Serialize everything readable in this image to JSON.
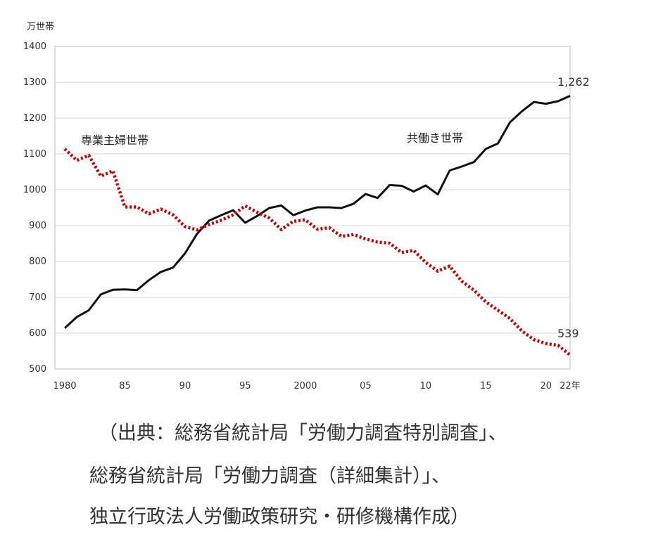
{
  "chart_data": {
    "type": "line",
    "unit_label": "万世帯",
    "ylim": [
      500,
      1400
    ],
    "yticks": [
      500,
      600,
      700,
      800,
      900,
      1000,
      1100,
      1200,
      1300,
      1400
    ],
    "xlim": [
      1980,
      2022
    ],
    "xticks": [
      {
        "value": 1980,
        "label": "1980"
      },
      {
        "value": 1985,
        "label": "85"
      },
      {
        "value": 1990,
        "label": "90"
      },
      {
        "value": 1995,
        "label": "95"
      },
      {
        "value": 2000,
        "label": "2000"
      },
      {
        "value": 2005,
        "label": "05"
      },
      {
        "value": 2010,
        "label": "10"
      },
      {
        "value": 2015,
        "label": "15"
      },
      {
        "value": 2020,
        "label": "20"
      },
      {
        "value": 2022,
        "label": "22年"
      }
    ],
    "grid": true,
    "x": [
      1980,
      1981,
      1982,
      1983,
      1984,
      1985,
      1986,
      1987,
      1988,
      1989,
      1990,
      1991,
      1992,
      1993,
      1994,
      1995,
      1996,
      1997,
      1998,
      1999,
      2000,
      2001,
      2002,
      2003,
      2004,
      2005,
      2006,
      2007,
      2008,
      2009,
      2010,
      2011,
      2012,
      2013,
      2014,
      2015,
      2016,
      2017,
      2018,
      2019,
      2020,
      2021,
      2022
    ],
    "series": [
      {
        "name": "共働き世帯",
        "color": "#111111",
        "style": "solid",
        "values": [
          614,
          645,
          664,
          708,
          721,
          722,
          720,
          748,
          771,
          783,
          823,
          877,
          914,
          929,
          943,
          908,
          927,
          949,
          956,
          929,
          942,
          951,
          951,
          949,
          961,
          988,
          977,
          1013,
          1011,
          995,
          1012,
          987,
          1054,
          1065,
          1077,
          1114,
          1129,
          1188,
          1219,
          1245,
          1240,
          1247,
          1262
        ],
        "end_label": "1,262"
      },
      {
        "name": "専業主婦世帯",
        "color": "#c00000",
        "style": "dotted",
        "values": [
          1114,
          1082,
          1096,
          1038,
          1053,
          952,
          952,
          933,
          946,
          930,
          897,
          888,
          903,
          915,
          930,
          955,
          937,
          921,
          889,
          912,
          916,
          890,
          894,
          870,
          875,
          863,
          854,
          851,
          825,
          831,
          797,
          773,
          787,
          745,
          720,
          687,
          664,
          641,
          606,
          582,
          571,
          566,
          539
        ],
        "end_label": "539"
      }
    ]
  },
  "source_lines": [
    "（出典：総務省統計局「労働力調査特別調査」、",
    "総務省統計局「労働力調査（詳細集計）」、",
    "独立行政法人労働政策研究・研修機構作成）"
  ]
}
